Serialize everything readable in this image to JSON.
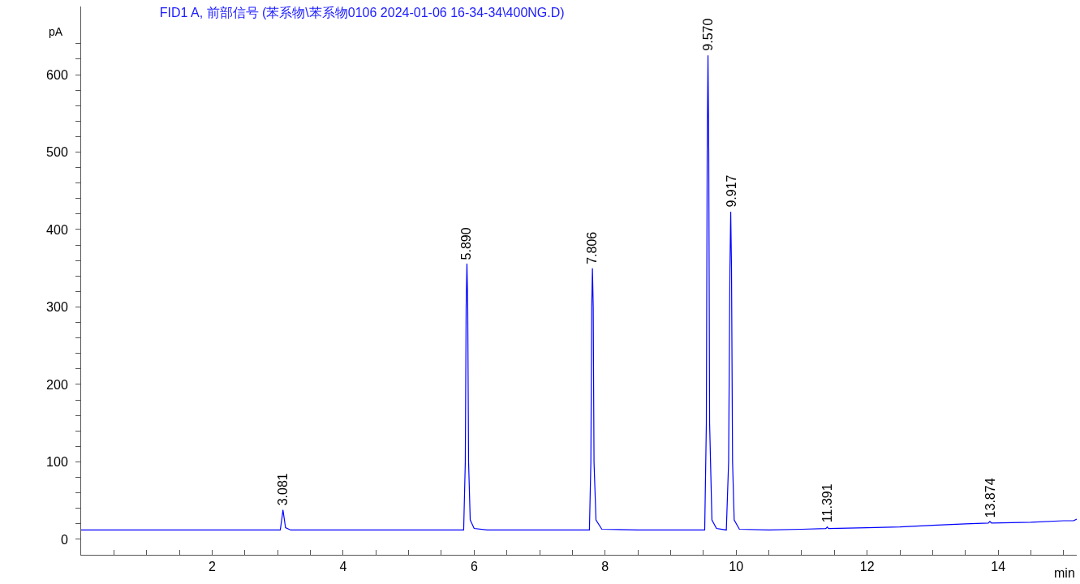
{
  "chart_data": {
    "type": "line",
    "title": "FID1 A, 前部信号 (苯系物\\苯系物0106 2024-01-06 16-34-34\\400NG.D)",
    "xlabel": "min",
    "ylabel": "pA",
    "series": [
      {
        "color": "#0000ff",
        "x": [
          0,
          1,
          2,
          2.9,
          3.04,
          3.07,
          3.081,
          3.095,
          3.12,
          3.2,
          3.6,
          4.5,
          5.5,
          5.84,
          5.865,
          5.878,
          5.89,
          5.902,
          5.915,
          5.94,
          6.0,
          6.2,
          7.0,
          7.76,
          7.782,
          7.795,
          7.806,
          7.818,
          7.83,
          7.86,
          7.95,
          8.5,
          9.2,
          9.52,
          9.545,
          9.558,
          9.57,
          9.582,
          9.595,
          9.63,
          9.7,
          9.85,
          9.885,
          9.905,
          9.917,
          9.929,
          9.945,
          9.97,
          10.05,
          10.5,
          11.0,
          11.37,
          11.391,
          11.41,
          12,
          12.5,
          13.0,
          13.5,
          13.85,
          13.874,
          13.9,
          14.5,
          15.0,
          15.15,
          15.2
        ],
        "values": [
          12,
          12,
          12,
          12,
          12,
          30,
          38,
          30,
          15,
          12,
          12,
          12,
          12,
          12,
          100,
          300,
          356,
          300,
          100,
          25,
          14,
          12,
          12,
          12,
          100,
          300,
          350,
          300,
          100,
          25,
          13,
          12,
          12,
          12,
          150,
          500,
          625,
          500,
          150,
          25,
          14,
          12,
          100,
          350,
          423,
          350,
          100,
          25,
          13,
          12,
          13,
          14,
          16,
          14,
          15,
          16,
          18,
          20,
          21,
          23,
          21,
          22,
          24,
          24,
          26
        ]
      }
    ],
    "xlim": [
      0,
      15.2
    ],
    "ylim": [
      -20,
      688
    ],
    "xticks": [
      {
        "value": 0.5,
        "label": null
      },
      {
        "value": 1,
        "label": null
      },
      {
        "value": 1.5,
        "label": null
      },
      2,
      {
        "value": 2.5,
        "label": null
      },
      {
        "value": 3,
        "label": null
      },
      {
        "value": 3.5,
        "label": null
      },
      4,
      {
        "value": 4.5,
        "label": null
      },
      {
        "value": 5,
        "label": null
      },
      {
        "value": 5.5,
        "label": null
      },
      6,
      {
        "value": 6.5,
        "label": null
      },
      {
        "value": 7,
        "label": null
      },
      {
        "value": 7.5,
        "label": null
      },
      8,
      {
        "value": 8.5,
        "label": null
      },
      {
        "value": 9,
        "label": null
      },
      {
        "value": 9.5,
        "label": null
      },
      10,
      {
        "value": 10.5,
        "label": null
      },
      {
        "value": 11,
        "label": null
      },
      {
        "value": 11.5,
        "label": null
      },
      12,
      {
        "value": 12.5,
        "label": null
      },
      {
        "value": 13,
        "label": null
      },
      {
        "value": 13.5,
        "label": null
      },
      14,
      {
        "value": 14.5,
        "label": null
      },
      {
        "value": 15,
        "label": null
      }
    ],
    "yticks": [
      0,
      {
        "value": 20,
        "label": null
      },
      {
        "value": 40,
        "label": null
      },
      {
        "value": 60,
        "label": null
      },
      {
        "value": 80,
        "label": null
      },
      100,
      {
        "value": 120,
        "label": null
      },
      {
        "value": 140,
        "label": null
      },
      {
        "value": 160,
        "label": null
      },
      {
        "value": 180,
        "label": null
      },
      200,
      {
        "value": 220,
        "label": null
      },
      {
        "value": 240,
        "label": null
      },
      {
        "value": 260,
        "label": null
      },
      {
        "value": 280,
        "label": null
      },
      300,
      {
        "value": 320,
        "label": null
      },
      {
        "value": 340,
        "label": null
      },
      {
        "value": 360,
        "label": null
      },
      {
        "value": 380,
        "label": null
      },
      400,
      {
        "value": 420,
        "label": null
      },
      {
        "value": 440,
        "label": null
      },
      {
        "value": 460,
        "label": null
      },
      {
        "value": 480,
        "label": null
      },
      500,
      {
        "value": 520,
        "label": null
      },
      {
        "value": 540,
        "label": null
      },
      {
        "value": 560,
        "label": null
      },
      {
        "value": 580,
        "label": null
      },
      600,
      {
        "value": 620,
        "label": null
      },
      {
        "value": 640,
        "label": null
      }
    ],
    "grid": false,
    "marker": "none",
    "line_style": "solid",
    "annotations": [
      {
        "text": "3.081",
        "x": 3.081,
        "y": 38
      },
      {
        "text": "5.890",
        "x": 5.89,
        "y": 356
      },
      {
        "text": "7.806",
        "x": 7.806,
        "y": 350
      },
      {
        "text": "9.570",
        "x": 9.57,
        "y": 625
      },
      {
        "text": "9.917",
        "x": 9.917,
        "y": 423
      },
      {
        "text": "11.391",
        "x": 11.391,
        "y": 16
      },
      {
        "text": "13.874",
        "x": 13.874,
        "y": 23
      }
    ]
  }
}
